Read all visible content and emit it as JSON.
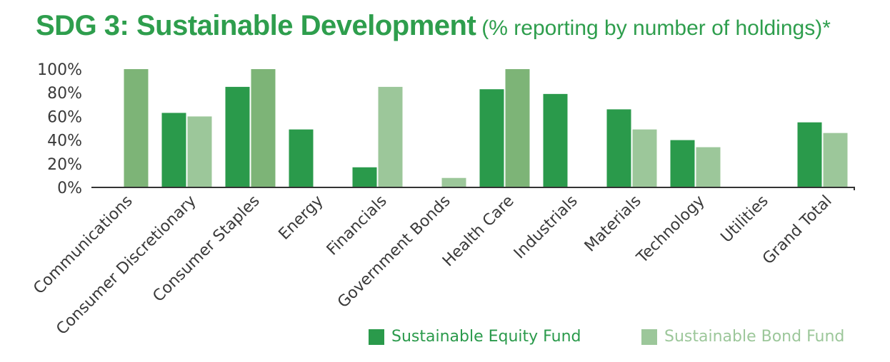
{
  "title": "SDG 3: Sustainable Development",
  "subtitle": "(% reporting by number of holdings)*",
  "chart_data": {
    "type": "bar",
    "categories": [
      "Communications",
      "Consumer Discretionary",
      "Consumer Staples",
      "Energy",
      "Financials",
      "Government Bonds",
      "Health Care",
      "Industrials",
      "Materials",
      "Technology",
      "Utilities",
      "Grand Total"
    ],
    "series": [
      {
        "name": "Sustainable Equity Fund",
        "color": "#2a9a4b",
        "values": [
          0,
          63,
          85,
          49,
          17,
          0,
          83,
          79,
          66,
          40,
          0,
          55
        ]
      },
      {
        "name": "Sustainable Bond Fund",
        "color": "#9cc79a",
        "values": [
          100,
          60,
          100,
          0,
          85,
          8,
          100,
          0,
          49,
          34,
          0,
          46
        ]
      }
    ],
    "highlight_color": "#7db477",
    "ylim": [
      0,
      100
    ],
    "yticks": [
      "0%",
      "20%",
      "40%",
      "60%",
      "80%",
      "100%"
    ],
    "legend_position": "bottom-right"
  }
}
